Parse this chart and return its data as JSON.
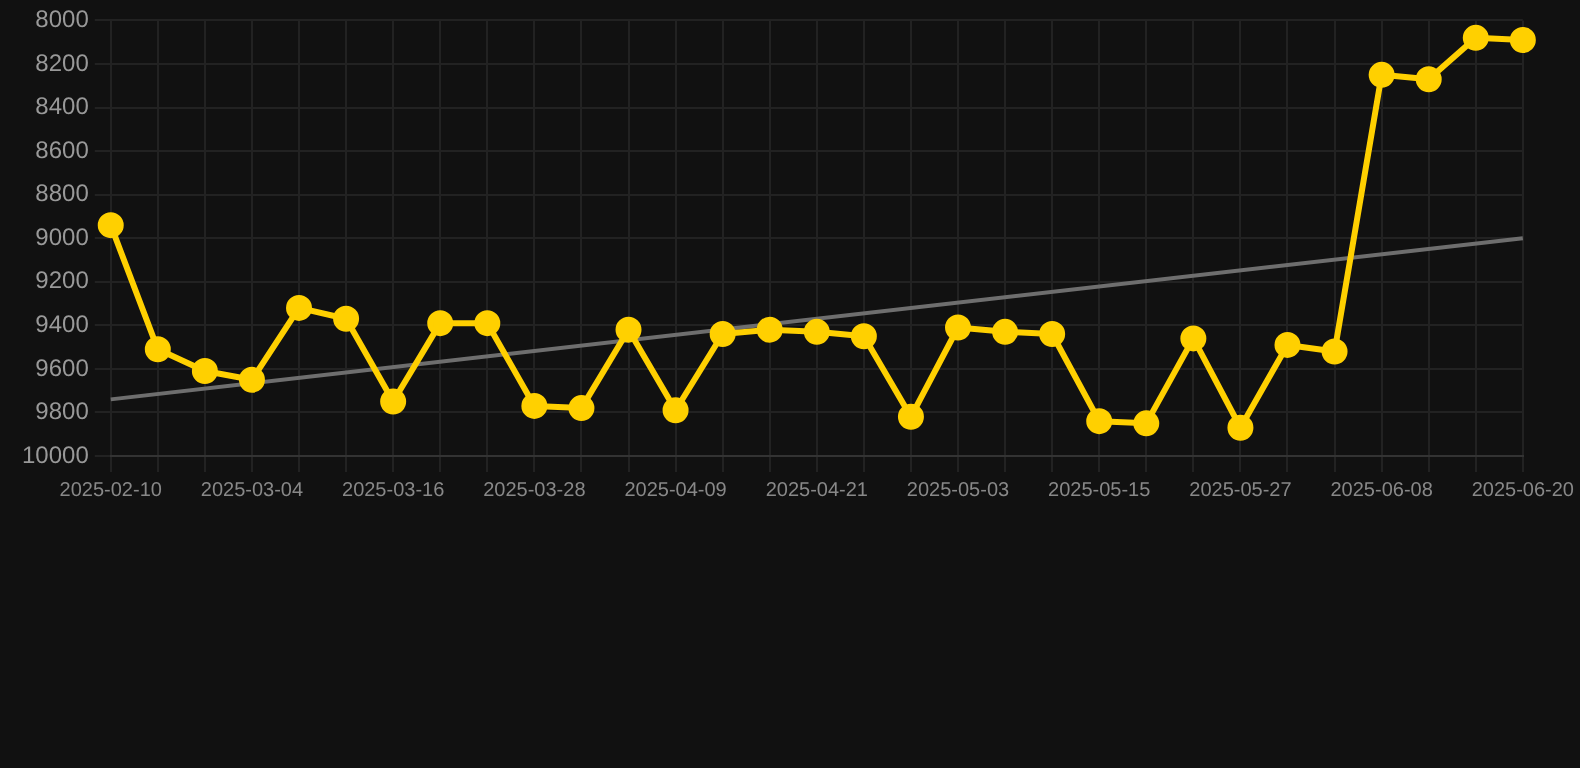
{
  "chart_data": {
    "type": "line",
    "categories": [
      "2025-02-10",
      null,
      null,
      "2025-03-04",
      null,
      null,
      "2025-03-16",
      null,
      null,
      "2025-03-28",
      null,
      null,
      "2025-04-09",
      null,
      null,
      "2025-04-21",
      null,
      null,
      "2025-05-03",
      null,
      null,
      "2025-05-15",
      null,
      null,
      "2025-05-27",
      null,
      null,
      "2025-06-08",
      null,
      null,
      "2025-06-20"
    ],
    "series": [
      {
        "color": "#ffd000",
        "marker": "circle",
        "values": [
          8940,
          9510,
          9610,
          9650,
          9320,
          9370,
          9750,
          9390,
          9390,
          9770,
          9780,
          9420,
          9790,
          9440,
          9420,
          9430,
          9450,
          9820,
          9410,
          9430,
          9440,
          9840,
          9850,
          9460,
          9870,
          9490,
          9520,
          8250,
          8270,
          8080,
          8090
        ]
      },
      {
        "color": "#6e6e6e",
        "marker": "none",
        "values": [
          9740,
          null,
          null,
          null,
          null,
          null,
          null,
          null,
          null,
          null,
          null,
          null,
          null,
          null,
          null,
          null,
          null,
          null,
          null,
          null,
          null,
          null,
          null,
          null,
          null,
          null,
          null,
          null,
          null,
          null,
          9000
        ]
      }
    ],
    "ylim": [
      10000,
      8000
    ],
    "yticks": [
      8000,
      8200,
      8400,
      8600,
      8800,
      9000,
      9200,
      9400,
      9600,
      9800,
      10000
    ],
    "grid": true,
    "legend": false
  }
}
